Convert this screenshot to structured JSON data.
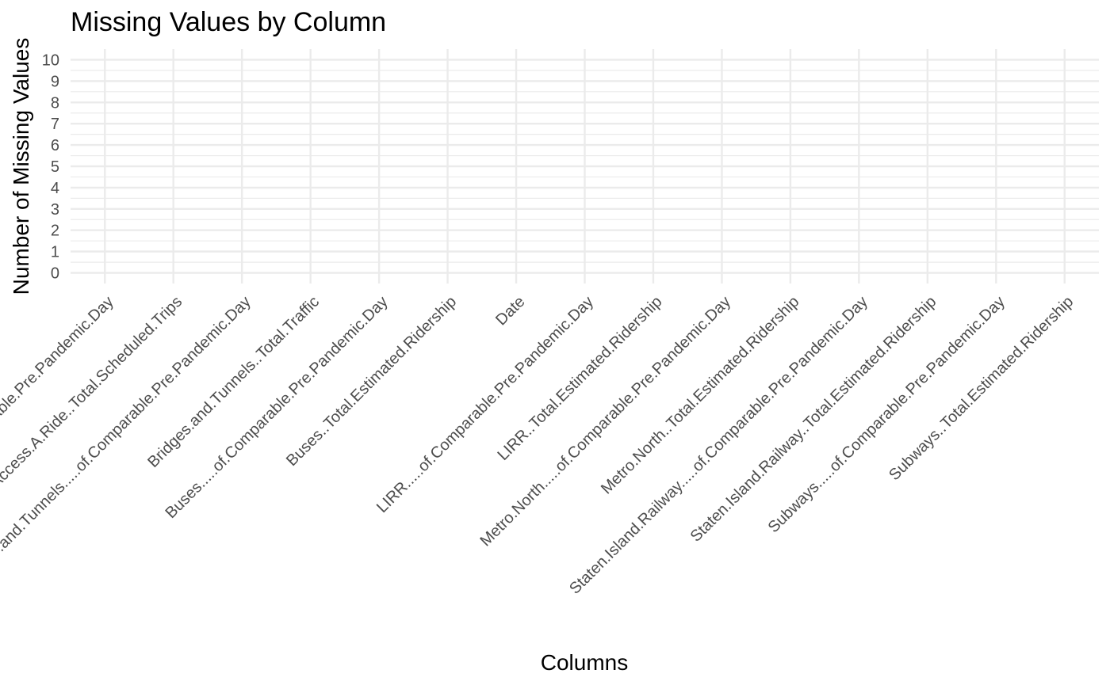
{
  "chart_data": {
    "type": "bar",
    "title": "Missing Values by Column",
    "xlabel": "Columns",
    "ylabel": "Number of Missing Values",
    "categories": [
      "Access.A.Ride.....of.Comparable.Pre.Pandemic.Day",
      "Access.A.Ride..Total.Scheduled.Trips",
      "Bridges.and.Tunnels.....of.Comparable.Pre.Pandemic.Day",
      "Bridges.and.Tunnels..Total.Traffic",
      "Buses.....of.Comparable.Pre.Pandemic.Day",
      "Buses..Total.Estimated.Ridership",
      "Date",
      "LIRR.....of.Comparable.Pre.Pandemic.Day",
      "LIRR..Total.Estimated.Ridership",
      "Metro.North.....of.Comparable.Pre.Pandemic.Day",
      "Metro.North..Total.Estimated.Ridership",
      "Staten.Island.Railway.....of.Comparable.Pre.Pandemic.Day",
      "Staten.Island.Railway..Total.Estimated.Ridership",
      "Subways.....of.Comparable.Pre.Pandemic.Day",
      "Subways..Total.Estimated.Ridership"
    ],
    "values": [
      0,
      0,
      0,
      0,
      0,
      0,
      0,
      0,
      0,
      0,
      0,
      0,
      0,
      0,
      0
    ],
    "yticks": [
      "0",
      "1",
      "2",
      "3",
      "4",
      "5",
      "6",
      "7",
      "8",
      "9",
      "10"
    ],
    "ylim": [
      -0.5,
      10.5
    ],
    "grid": true,
    "legend": "none",
    "theme": "minimal",
    "colors": {
      "grid": "#ebebeb",
      "tick_text": "#4d4d4d",
      "title_text": "#000000",
      "bar": "#595959"
    }
  }
}
